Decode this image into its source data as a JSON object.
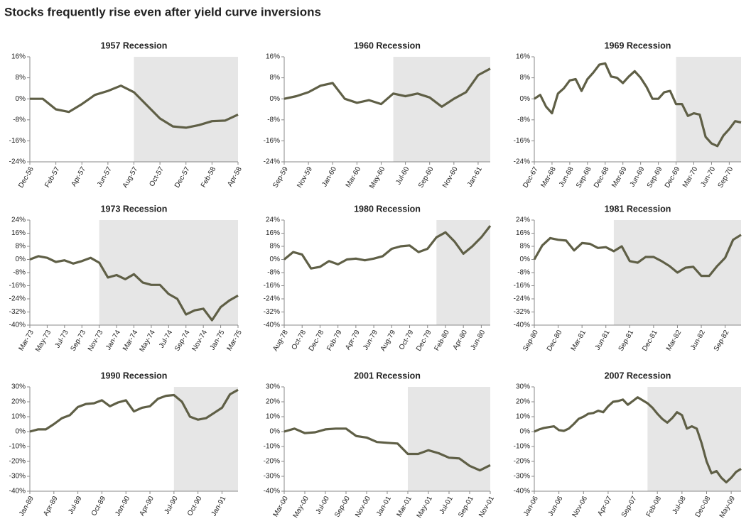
{
  "title": "Stocks frequently rise even after yield curve inversions",
  "chart_data": [
    {
      "type": "line",
      "title": "1957 Recession",
      "color": "#5f5f46",
      "shade_color": "#e6e6e6",
      "grid": false,
      "shade_start": 8,
      "categories": [
        "Dec-56",
        null,
        "Feb-57",
        null,
        "Apr-57",
        null,
        "Jun-57",
        null,
        "Aug-57",
        null,
        "Oct-57",
        null,
        "Dec-57",
        null,
        "Feb-58",
        null,
        "Apr-58"
      ],
      "values": [
        0,
        0,
        -4,
        -5,
        -2,
        1.5,
        3,
        5,
        2.5,
        -2.5,
        -7.5,
        -10.5,
        -11,
        -10,
        -8.5,
        -8.3,
        -6
      ],
      "ylim": [
        -24,
        16
      ],
      "yticks": [
        {
          "value": -24,
          "label": "-24%"
        },
        {
          "value": -16,
          "label": "-16%"
        },
        {
          "value": -8,
          "label": "-8%"
        },
        {
          "value": 0,
          "label": "0%"
        },
        {
          "value": 8,
          "label": "8%"
        },
        {
          "value": 16,
          "label": "16%"
        }
      ]
    },
    {
      "type": "line",
      "title": "1960 Recession",
      "color": "#5f5f46",
      "shade_color": "#e6e6e6",
      "grid": false,
      "shade_start": 9,
      "categories": [
        "Sep-59",
        null,
        "Nov-59",
        null,
        "Jan-60",
        null,
        "Mar-60",
        null,
        "May-60",
        null,
        "Jul-60",
        null,
        "Sep-60",
        null,
        "Nov-60",
        null,
        "Jan-61",
        null
      ],
      "values": [
        0,
        1,
        2.5,
        5,
        6,
        0,
        -1.5,
        -0.5,
        -2,
        2,
        1,
        2,
        0.5,
        -3,
        0,
        2.5,
        9,
        11.5
      ],
      "ylim": [
        -24,
        16
      ],
      "yticks": [
        {
          "value": -24,
          "label": "-24%"
        },
        {
          "value": -16,
          "label": "-16%"
        },
        {
          "value": -8,
          "label": "-8%"
        },
        {
          "value": 0,
          "label": "0%"
        },
        {
          "value": 8,
          "label": "8%"
        },
        {
          "value": 16,
          "label": "16%"
        }
      ]
    },
    {
      "type": "line",
      "title": "1969 Recession",
      "color": "#5f5f46",
      "shade_color": "#e6e6e6",
      "grid": false,
      "shade_start": 24,
      "categories": [
        "Dec-67",
        null,
        null,
        "Mar-68",
        null,
        null,
        "Jun-68",
        null,
        null,
        "Sep-68",
        null,
        null,
        "Dec-68",
        null,
        null,
        "Mar-69",
        null,
        null,
        "Jun-69",
        null,
        null,
        "Sep-69",
        null,
        null,
        "Dec-69",
        null,
        null,
        "Mar-70",
        null,
        null,
        "Jun-70",
        null,
        null,
        "Sep-70",
        null,
        null
      ],
      "values": [
        0,
        1.5,
        -3,
        -5.5,
        2,
        4,
        7,
        7.5,
        3,
        7.5,
        10,
        13,
        13.5,
        8.5,
        8,
        6,
        8.5,
        10.5,
        8,
        4.5,
        0,
        0,
        2.5,
        3,
        -2,
        -2,
        -6.5,
        -5.5,
        -6,
        -14.5,
        -17,
        -18,
        -14,
        -11.5,
        -8.5,
        -9
      ],
      "ylim": [
        -24,
        16
      ],
      "yticks": [
        {
          "value": -24,
          "label": "-24%"
        },
        {
          "value": -16,
          "label": "-16%"
        },
        {
          "value": -8,
          "label": "-8%"
        },
        {
          "value": 0,
          "label": "0%"
        },
        {
          "value": 8,
          "label": "8%"
        },
        {
          "value": 16,
          "label": "16%"
        }
      ]
    },
    {
      "type": "line",
      "title": "1973 Recession",
      "color": "#5f5f46",
      "shade_color": "#e6e6e6",
      "grid": false,
      "shade_start": 8,
      "categories": [
        "Mar-73",
        null,
        "May-73",
        null,
        "Jul-73",
        null,
        "Sep-73",
        null,
        "Nov-73",
        null,
        "Jan-74",
        null,
        "Mar-74",
        null,
        "May-74",
        null,
        "Jul-74",
        null,
        "Sep-74",
        null,
        "Nov-74",
        null,
        "Jan-75",
        null,
        "Mar-75"
      ],
      "values": [
        0,
        2,
        1,
        -1.5,
        -0.5,
        -2.5,
        -1,
        1,
        -2,
        -11,
        -9.5,
        -12,
        -9,
        -14,
        -15.5,
        -15.5,
        -21,
        -24,
        -33.5,
        -31,
        -30,
        -37,
        -29,
        -25,
        -22
      ],
      "ylim": [
        -40,
        24
      ],
      "yticks": [
        {
          "value": -40,
          "label": "-40%"
        },
        {
          "value": -32,
          "label": "-32%"
        },
        {
          "value": -24,
          "label": "-24%"
        },
        {
          "value": -16,
          "label": "-16%"
        },
        {
          "value": -8,
          "label": "-8%"
        },
        {
          "value": 0,
          "label": "0%"
        },
        {
          "value": 8,
          "label": "8%"
        },
        {
          "value": 16,
          "label": "16%"
        },
        {
          "value": 24,
          "label": "24%"
        }
      ]
    },
    {
      "type": "line",
      "title": "1980 Recession",
      "color": "#5f5f46",
      "shade_color": "#e6e6e6",
      "grid": false,
      "shade_start": 17,
      "categories": [
        "Aug-78",
        null,
        "Oct-78",
        null,
        "Dec-78",
        null,
        "Feb-79",
        null,
        "Apr-79",
        null,
        "Jun-79",
        null,
        "Aug-79",
        null,
        "Oct-79",
        null,
        "Dec-79",
        null,
        "Feb-80",
        null,
        "Apr-80",
        null,
        "Jun-80",
        null
      ],
      "values": [
        0,
        4.5,
        3,
        -5.5,
        -4.5,
        -1,
        -3,
        0,
        0.5,
        -0.5,
        0.5,
        2,
        6.5,
        8,
        8.5,
        4.5,
        6.5,
        13.5,
        16.5,
        11,
        3.5,
        8,
        13.5,
        20.5
      ],
      "ylim": [
        -40,
        24
      ],
      "yticks": [
        {
          "value": -40,
          "label": "-40%"
        },
        {
          "value": -32,
          "label": "-32%"
        },
        {
          "value": -24,
          "label": "-24%"
        },
        {
          "value": -16,
          "label": "-16%"
        },
        {
          "value": -8,
          "label": "-8%"
        },
        {
          "value": 0,
          "label": "0%"
        },
        {
          "value": 8,
          "label": "8%"
        },
        {
          "value": 16,
          "label": "16%"
        },
        {
          "value": 24,
          "label": "24%"
        }
      ]
    },
    {
      "type": "line",
      "title": "1981 Recession",
      "color": "#5f5f46",
      "shade_color": "#e6e6e6",
      "grid": false,
      "shade_start": 10,
      "categories": [
        "Sep-80",
        null,
        null,
        "Dec-80",
        null,
        null,
        "Mar-81",
        null,
        null,
        "Jun-81",
        null,
        null,
        "Sep-81",
        null,
        null,
        "Dec-81",
        null,
        null,
        "Mar-82",
        null,
        null,
        "Jun-82",
        null,
        null,
        "Sep-82",
        null,
        null
      ],
      "values": [
        0,
        8.5,
        13,
        12,
        11.5,
        5.5,
        10,
        9.5,
        7,
        7.5,
        5,
        8,
        -1,
        -2,
        1.5,
        1.5,
        -1,
        -4,
        -8,
        -5,
        -4.5,
        -10,
        -10,
        -4,
        1,
        12,
        15
      ],
      "ylim": [
        -40,
        24
      ],
      "yticks": [
        {
          "value": -40,
          "label": "-40%"
        },
        {
          "value": -32,
          "label": "-32%"
        },
        {
          "value": -24,
          "label": "-24%"
        },
        {
          "value": -16,
          "label": "-16%"
        },
        {
          "value": -8,
          "label": "-8%"
        },
        {
          "value": 0,
          "label": "0%"
        },
        {
          "value": 8,
          "label": "8%"
        },
        {
          "value": 16,
          "label": "16%"
        },
        {
          "value": 24,
          "label": "24%"
        }
      ]
    },
    {
      "type": "line",
      "title": "1990 Recession",
      "color": "#5f5f46",
      "shade_color": "#e6e6e6",
      "grid": false,
      "shade_start": 18,
      "categories": [
        "Jan-89",
        null,
        null,
        "Apr-89",
        null,
        null,
        "Jul-89",
        null,
        null,
        "Oct-89",
        null,
        null,
        "Jan-90",
        null,
        null,
        "Apr-90",
        null,
        null,
        "Jul-90",
        null,
        null,
        "Oct-90",
        null,
        null,
        "Jan-91",
        null,
        null
      ],
      "values": [
        0,
        1.5,
        1.5,
        5,
        9,
        11,
        16.5,
        18.5,
        19,
        21,
        17,
        19.5,
        21,
        13.5,
        16,
        17,
        22,
        24,
        24.5,
        20,
        10,
        8,
        9,
        12.5,
        16,
        25,
        28
      ],
      "ylim": [
        -40,
        30
      ],
      "yticks": [
        {
          "value": -40,
          "label": "-40%"
        },
        {
          "value": -30,
          "label": "-30%"
        },
        {
          "value": -20,
          "label": "-20%"
        },
        {
          "value": -10,
          "label": "-10%"
        },
        {
          "value": 0,
          "label": "0%"
        },
        {
          "value": 10,
          "label": "10%"
        },
        {
          "value": 20,
          "label": "20%"
        },
        {
          "value": 30,
          "label": "30%"
        }
      ]
    },
    {
      "type": "line",
      "title": "2001 Recession",
      "color": "#5f5f46",
      "shade_color": "#e6e6e6",
      "grid": false,
      "shade_start": 12,
      "categories": [
        "Mar-00",
        null,
        "May-00",
        null,
        "Jul-00",
        null,
        "Sep-00",
        null,
        "Nov-00",
        null,
        "Jan-01",
        null,
        "Mar-01",
        null,
        "May-01",
        null,
        "Jul-01",
        null,
        "Sep-01",
        null,
        "Nov-01"
      ],
      "values": [
        0,
        2,
        -1,
        -0.5,
        1.5,
        2,
        2,
        -3,
        -4,
        -7,
        -7.5,
        -8,
        -15,
        -15,
        -12.5,
        -14.5,
        -17.5,
        -18,
        -23,
        -26,
        -22.5
      ],
      "ylim": [
        -40,
        30
      ],
      "yticks": [
        {
          "value": -40,
          "label": "-40%"
        },
        {
          "value": -30,
          "label": "-30%"
        },
        {
          "value": -20,
          "label": "-20%"
        },
        {
          "value": -10,
          "label": "-10%"
        },
        {
          "value": 0,
          "label": "0%"
        },
        {
          "value": 10,
          "label": "10%"
        },
        {
          "value": 20,
          "label": "20%"
        },
        {
          "value": 30,
          "label": "30%"
        }
      ]
    },
    {
      "type": "line",
      "title": "2007 Recession",
      "color": "#5f5f46",
      "shade_color": "#e6e6e6",
      "grid": false,
      "shade_start": 23,
      "categories": [
        "Jan-06",
        null,
        null,
        null,
        null,
        "Jun-06",
        null,
        null,
        null,
        null,
        "Nov-06",
        null,
        null,
        null,
        null,
        "Apr-07",
        null,
        null,
        null,
        null,
        "Sep-07",
        null,
        null,
        null,
        null,
        "Feb-08",
        null,
        null,
        null,
        null,
        "Jul-08",
        null,
        null,
        null,
        null,
        "Dec-08",
        null,
        null,
        null,
        null,
        "May-09",
        null,
        null
      ],
      "values": [
        0,
        1.5,
        2.5,
        3,
        3.5,
        1,
        0.5,
        2,
        5,
        8.5,
        10,
        12,
        12.5,
        14,
        13,
        17,
        20,
        20.5,
        21.5,
        18,
        20.5,
        23,
        21,
        19,
        16,
        12,
        8.5,
        6,
        9,
        13,
        11,
        2,
        3.5,
        2,
        -8,
        -20,
        -28,
        -26.5,
        -31,
        -34,
        -31,
        -27,
        -25
      ],
      "ylim": [
        -40,
        30
      ],
      "yticks": [
        {
          "value": -40,
          "label": "-40%"
        },
        {
          "value": -30,
          "label": "-30%"
        },
        {
          "value": -20,
          "label": "-20%"
        },
        {
          "value": -10,
          "label": "-10%"
        },
        {
          "value": 0,
          "label": "0%"
        },
        {
          "value": 10,
          "label": "10%"
        },
        {
          "value": 20,
          "label": "20%"
        },
        {
          "value": 30,
          "label": "30%"
        }
      ]
    }
  ]
}
